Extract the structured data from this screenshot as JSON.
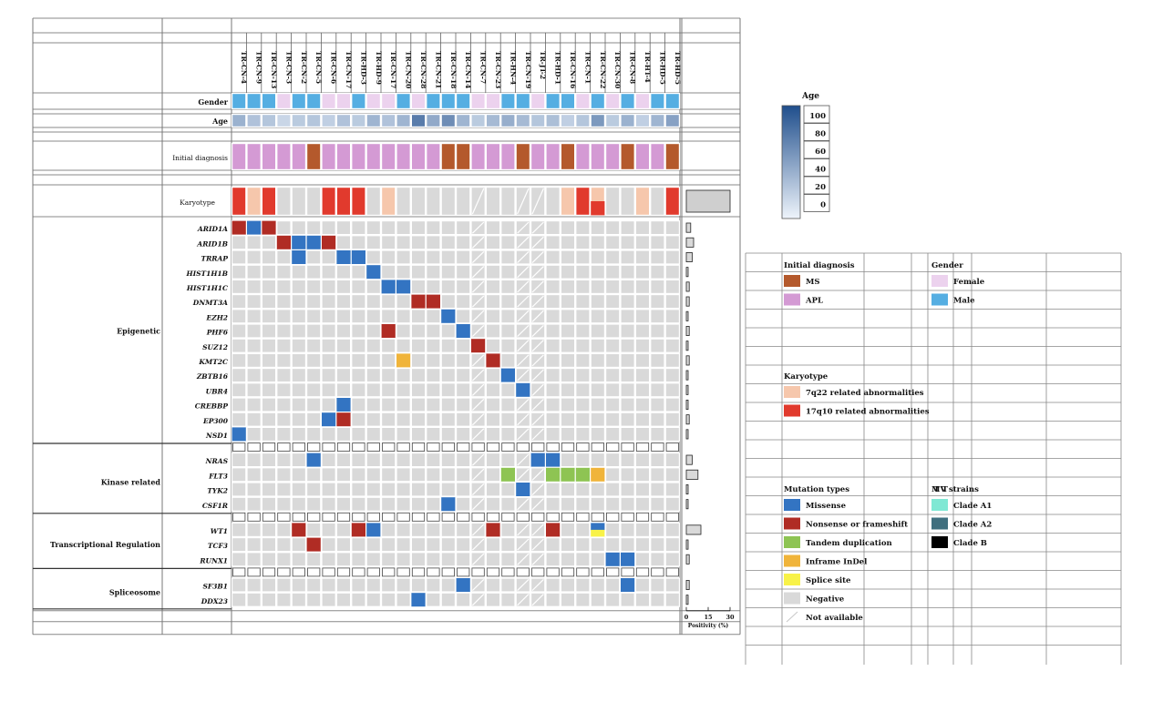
{
  "chart_data": {
    "type": "heatmap",
    "title": "",
    "samples": [
      "TR-CN-4",
      "TR-CN-9",
      "TR-CN-13",
      "TR-CN-3",
      "TR-CN-2",
      "TR-CN-5",
      "TR-CN-6",
      "TR-CN-17",
      "TR-HD-3",
      "TR-HD-9",
      "TR-CN-17",
      "TR-CN-20",
      "TR-CN-28",
      "TR-CN-21",
      "TR-CN-18",
      "TR-CN-14",
      "TR-CN-7",
      "TR-CN-23",
      "TR-HN-4",
      "TR-CN-19",
      "TR-JT-2",
      "TR-HD-1",
      "TR-CN-16",
      "TR-CN-1",
      "TR-CN-22",
      "TR-CN-30",
      "TR-CN-8",
      "TR-HT-4",
      "TR-HD-5",
      "TR-HD-5"
    ],
    "annotation_rows": {
      "gender_label": "Gender",
      "age_label": "Age",
      "diagnosis_label": "Initial diagnosis",
      "karyotype_label": "Karyotype"
    },
    "gender": [
      "M",
      "M",
      "M",
      "F",
      "M",
      "M",
      "F",
      "F",
      "M",
      "F",
      "F",
      "M",
      "F",
      "M",
      "M",
      "M",
      "F",
      "F",
      "M",
      "M",
      "F",
      "M",
      "M",
      "F",
      "M",
      "F",
      "M",
      "F",
      "M",
      "M"
    ],
    "age": [
      40,
      30,
      28,
      18,
      25,
      28,
      22,
      30,
      25,
      38,
      30,
      38,
      72,
      45,
      62,
      38,
      25,
      35,
      42,
      35,
      28,
      32,
      22,
      28,
      55,
      25,
      40,
      22,
      38,
      50
    ],
    "diagnosis": [
      "APL",
      "APL",
      "APL",
      "APL",
      "APL",
      "MS",
      "APL",
      "APL",
      "APL",
      "APL",
      "APL",
      "APL",
      "APL",
      "APL",
      "MS",
      "MS",
      "APL",
      "APL",
      "APL",
      "MS",
      "APL",
      "APL",
      "MS",
      "APL",
      "APL",
      "APL",
      "MS",
      "APL",
      "APL",
      "MS"
    ],
    "karyotype": [
      "17q10",
      "7q22",
      "17q10",
      "neg",
      "neg",
      "neg",
      "17q10",
      "17q10",
      "17q10",
      "neg",
      "7q22",
      "neg",
      "neg",
      "neg",
      "neg",
      "neg",
      "na",
      "neg",
      "neg",
      "na",
      "na",
      "neg",
      "7q22",
      "17q10",
      "mixed",
      "neg",
      "neg",
      "7q22",
      "neg",
      "7q22"
    ],
    "karyotype_extra": [
      "",
      "",
      "",
      "",
      "",
      "",
      "",
      "",
      "",
      "",
      "",
      "",
      "",
      "",
      "",
      "",
      "",
      "",
      "",
      "",
      "",
      "",
      "",
      "",
      "",
      "",
      "",
      "",
      "",
      "17q10"
    ],
    "groups": [
      {
        "name": "Epigenetic",
        "genes": [
          "ARID1A",
          "ARID1B",
          "TRRAP",
          "HIST1H1B",
          "HIST1H1C",
          "DNMT3A",
          "EZH2",
          "PHF6",
          "SUZ12",
          "KMT2C",
          "ZBTB16",
          "UBR4",
          "CREBBP",
          "EP300",
          "NSD1"
        ]
      },
      {
        "name": "Kinase related",
        "genes": [
          "NRAS",
          "FLT3",
          "TYK2",
          "CSF1R"
        ]
      },
      {
        "name": "Transcriptional Regulation",
        "genes": [
          "WT1",
          "TCF3",
          "RUNX1"
        ]
      },
      {
        "name": "Spliceosome",
        "genes": [
          "SF3B1",
          "DDX23"
        ]
      }
    ],
    "mutations": [
      {
        "gene": "ARID1A",
        "sample": 0,
        "type": "nonsense"
      },
      {
        "gene": "ARID1A",
        "sample": 1,
        "type": "missense"
      },
      {
        "gene": "ARID1A",
        "sample": 2,
        "type": "nonsense"
      },
      {
        "gene": "ARID1B",
        "sample": 3,
        "type": "nonsense"
      },
      {
        "gene": "ARID1B",
        "sample": 4,
        "type": "missense"
      },
      {
        "gene": "ARID1B",
        "sample": 5,
        "type": "missense"
      },
      {
        "gene": "ARID1B",
        "sample": 6,
        "type": "nonsense"
      },
      {
        "gene": "TRRAP",
        "sample": 4,
        "type": "missense"
      },
      {
        "gene": "TRRAP",
        "sample": 7,
        "type": "missense"
      },
      {
        "gene": "TRRAP",
        "sample": 8,
        "type": "missense"
      },
      {
        "gene": "HIST1H1B",
        "sample": 9,
        "type": "missense"
      },
      {
        "gene": "HIST1H1C",
        "sample": 10,
        "type": "missense"
      },
      {
        "gene": "HIST1H1C",
        "sample": 11,
        "type": "missense"
      },
      {
        "gene": "DNMT3A",
        "sample": 12,
        "type": "nonsense"
      },
      {
        "gene": "DNMT3A",
        "sample": 13,
        "type": "nonsense"
      },
      {
        "gene": "EZH2",
        "sample": 14,
        "type": "missense"
      },
      {
        "gene": "PHF6",
        "sample": 10,
        "type": "nonsense"
      },
      {
        "gene": "PHF6",
        "sample": 15,
        "type": "missense"
      },
      {
        "gene": "SUZ12",
        "sample": 16,
        "type": "nonsense"
      },
      {
        "gene": "KMT2C",
        "sample": 11,
        "type": "inframe"
      },
      {
        "gene": "KMT2C",
        "sample": 17,
        "type": "nonsense"
      },
      {
        "gene": "ZBTB16",
        "sample": 18,
        "type": "missense"
      },
      {
        "gene": "UBR4",
        "sample": 19,
        "type": "missense"
      },
      {
        "gene": "CREBBP",
        "sample": 7,
        "type": "missense"
      },
      {
        "gene": "EP300",
        "sample": 6,
        "type": "missense"
      },
      {
        "gene": "EP300",
        "sample": 7,
        "type": "nonsense"
      },
      {
        "gene": "NSD1",
        "sample": 0,
        "type": "missense"
      },
      {
        "gene": "NRAS",
        "sample": 5,
        "type": "missense"
      },
      {
        "gene": "NRAS",
        "sample": 20,
        "type": "missense"
      },
      {
        "gene": "NRAS",
        "sample": 21,
        "type": "missense"
      },
      {
        "gene": "FLT3",
        "sample": 18,
        "type": "tandem"
      },
      {
        "gene": "FLT3",
        "sample": 21,
        "type": "tandem"
      },
      {
        "gene": "FLT3",
        "sample": 22,
        "type": "tandem"
      },
      {
        "gene": "FLT3",
        "sample": 23,
        "type": "tandem"
      },
      {
        "gene": "FLT3",
        "sample": 24,
        "type": "inframe"
      },
      {
        "gene": "TYK2",
        "sample": 19,
        "type": "missense"
      },
      {
        "gene": "CSF1R",
        "sample": 14,
        "type": "missense"
      },
      {
        "gene": "WT1",
        "sample": 4,
        "type": "nonsense"
      },
      {
        "gene": "WT1",
        "sample": 8,
        "type": "nonsense"
      },
      {
        "gene": "WT1",
        "sample": 9,
        "type": "missense"
      },
      {
        "gene": "WT1",
        "sample": 17,
        "type": "nonsense"
      },
      {
        "gene": "WT1",
        "sample": 21,
        "type": "nonsense"
      },
      {
        "gene": "WT1",
        "sample": 24,
        "type": "missense"
      },
      {
        "gene": "WT1",
        "sample": 24,
        "type": "splice",
        "half": "bottom"
      },
      {
        "gene": "TCF3",
        "sample": 5,
        "type": "nonsense"
      },
      {
        "gene": "RUNX1",
        "sample": 25,
        "type": "missense"
      },
      {
        "gene": "RUNX1",
        "sample": 26,
        "type": "missense"
      },
      {
        "gene": "SF3B1",
        "sample": 15,
        "type": "missense"
      },
      {
        "gene": "SF3B1",
        "sample": 26,
        "type": "missense"
      },
      {
        "gene": "DDX23",
        "sample": 12,
        "type": "missense"
      }
    ],
    "not_available_samples": [
      16,
      19,
      20
    ],
    "positivity": {
      "xlabel": "Positivity (%)",
      "ticks": [
        "0",
        "15",
        "30"
      ],
      "xlim": [
        0,
        30
      ],
      "karyotype": 30,
      "genes": {
        "ARID1A": 3,
        "ARID1B": 5,
        "TRRAP": 4,
        "HIST1H1B": 1,
        "HIST1H1C": 2,
        "DNMT3A": 2,
        "EZH2": 1,
        "PHF6": 2,
        "SUZ12": 1,
        "KMT2C": 2,
        "ZBTB16": 1,
        "UBR4": 1,
        "CREBBP": 1,
        "EP300": 2,
        "NSD1": 1,
        "NRAS": 4,
        "FLT3": 8,
        "TYK2": 1,
        "CSF1R": 1,
        "WT1": 10,
        "TCF3": 1,
        "RUNX1": 2,
        "SF3B1": 2,
        "DDX23": 1
      }
    },
    "age_scale": {
      "title": "Age",
      "ticks": [
        "100",
        "80",
        "60",
        "40",
        "20",
        "0"
      ],
      "min": 0,
      "max": 100
    },
    "legend": {
      "diagnosis": {
        "title": "Initial diagnosis",
        "items": [
          {
            "label": "MS",
            "color": "#b4592c"
          },
          {
            "label": "APL",
            "color": "#d49ad4"
          }
        ]
      },
      "gender": {
        "title": "Gender",
        "items": [
          {
            "label": "Female",
            "color": "#ecd2ee"
          },
          {
            "label": "Male",
            "color": "#55aee2"
          }
        ]
      },
      "karyotype": {
        "title": "Karyotype",
        "items": [
          {
            "label": "7q22 related abnormalities",
            "color": "#f6c7ac"
          },
          {
            "label": "17q10 related abnormalities",
            "color": "#e13a2d"
          }
        ]
      },
      "mutation": {
        "title": "Mutation types",
        "items": [
          {
            "label": "Missense",
            "color": "#3374c2"
          },
          {
            "label": "Nonsense or frameshift",
            "color": "#b02c24"
          },
          {
            "label": "Tandem duplication",
            "color": "#8ec453"
          },
          {
            "label": "Inframe InDel",
            "color": "#f0b43a"
          },
          {
            "label": "Splice site",
            "color": "#f8f248"
          },
          {
            "label": "Negative",
            "color": "#d9d9d9"
          },
          {
            "label": "Not available",
            "color": "#ffffff"
          }
        ]
      },
      "strains": {
        "title": "MV strains",
        "prefix": "T T",
        "items": [
          {
            "label": "Clade A1",
            "color": "#80e8d4"
          },
          {
            "label": "Clade A2",
            "color": "#3f6f7e"
          },
          {
            "label": "Clade B",
            "color": "#000000"
          }
        ]
      }
    },
    "colors": {
      "negative": "#d9d9d9",
      "grid": "#555555"
    }
  }
}
